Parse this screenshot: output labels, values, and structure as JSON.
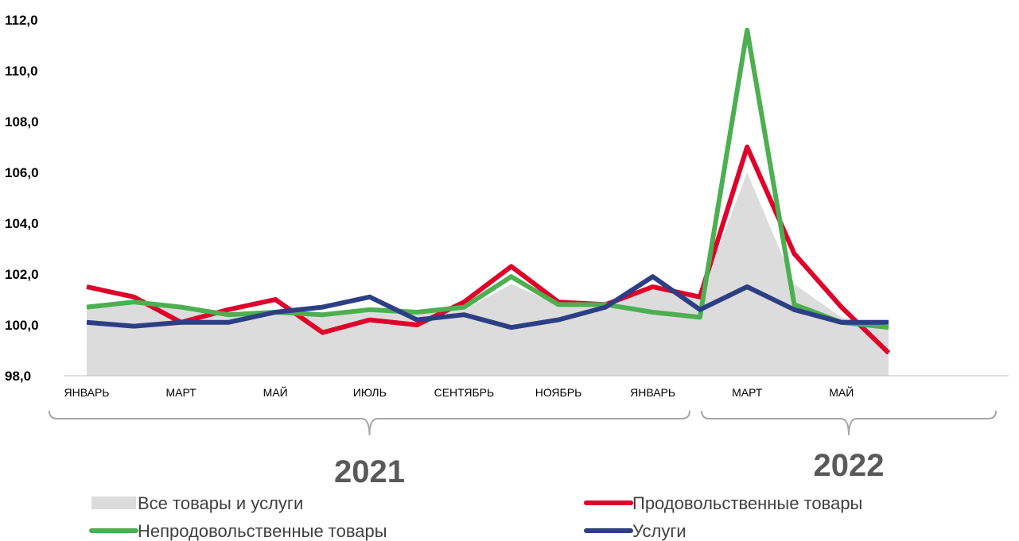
{
  "chart_data": {
    "type": "line",
    "title": "",
    "xlabel": "",
    "ylabel": "",
    "ylim": [
      98,
      112
    ],
    "yticks": [
      "98,0",
      "100,0",
      "102,0",
      "104,0",
      "106,0",
      "108,0",
      "110,0",
      "112,0"
    ],
    "x": [
      "2021-01",
      "2021-02",
      "2021-03",
      "2021-04",
      "2021-05",
      "2021-06",
      "2021-07",
      "2021-08",
      "2021-09",
      "2021-10",
      "2021-11",
      "2021-12",
      "2022-01",
      "2022-02",
      "2022-03",
      "2022-04",
      "2022-05",
      "2022-06"
    ],
    "xtick_labels": [
      {
        "index": 0,
        "label": "ЯНВАРЬ"
      },
      {
        "index": 2,
        "label": "МАРТ"
      },
      {
        "index": 4,
        "label": "МАЙ"
      },
      {
        "index": 6,
        "label": "ИЮЛЬ"
      },
      {
        "index": 8,
        "label": "СЕНТЯБРЬ"
      },
      {
        "index": 10,
        "label": "НОЯБРЬ"
      },
      {
        "index": 12,
        "label": "ЯНВАРЬ"
      },
      {
        "index": 14,
        "label": "МАРТ"
      },
      {
        "index": 16,
        "label": "МАЙ"
      }
    ],
    "year_groups": [
      {
        "label": "2021",
        "start_index": 0,
        "end_index": 11
      },
      {
        "label": "2022",
        "start_index": 12,
        "end_index": 17
      }
    ],
    "legend_position": "bottom",
    "grid": false,
    "series": [
      {
        "name": "Все товары и услуги",
        "kind": "area",
        "color": "#dcdcdc",
        "values": [
          100.7,
          100.8,
          100.7,
          100.4,
          100.5,
          100.4,
          100.5,
          100.5,
          100.6,
          101.6,
          100.8,
          100.7,
          101.4,
          101.1,
          106.0,
          101.6,
          100.3,
          99.9
        ]
      },
      {
        "name": "Продовольственные товары",
        "kind": "line",
        "color": "#e0002a",
        "values": [
          101.5,
          101.1,
          100.1,
          100.6,
          101.0,
          99.7,
          100.2,
          100.0,
          100.9,
          102.3,
          100.9,
          100.8,
          101.5,
          101.1,
          107.0,
          102.8,
          100.7,
          98.9
        ]
      },
      {
        "name": "Непродовольственные товары",
        "kind": "line",
        "color": "#4caf50",
        "values": [
          100.7,
          100.9,
          100.7,
          100.4,
          100.5,
          100.4,
          100.6,
          100.5,
          100.7,
          101.9,
          100.8,
          100.8,
          100.5,
          100.3,
          111.6,
          100.8,
          100.1,
          99.9
        ]
      },
      {
        "name": "Услуги",
        "kind": "line",
        "color": "#2d3e85",
        "values": [
          100.1,
          99.95,
          100.1,
          100.1,
          100.5,
          100.7,
          101.1,
          100.2,
          100.4,
          99.9,
          100.2,
          100.7,
          101.9,
          100.6,
          101.5,
          100.6,
          100.1,
          100.1
        ]
      }
    ]
  }
}
